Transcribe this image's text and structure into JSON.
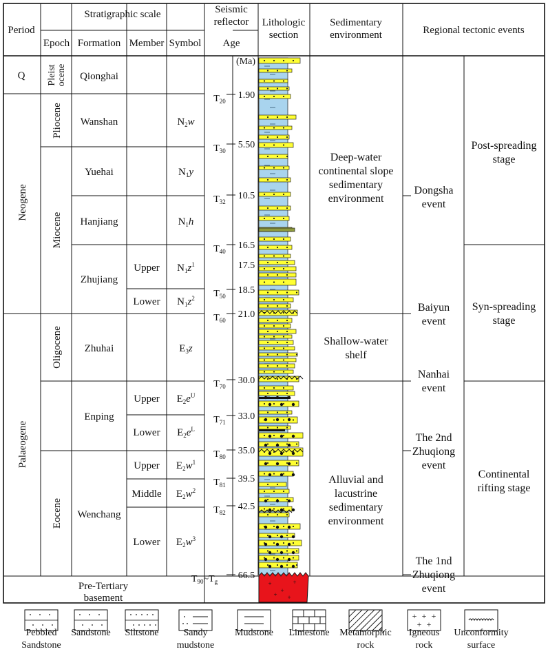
{
  "header": {
    "period": "Period",
    "strat_scale": "Stratigraphic scale",
    "epoch": "Epoch",
    "formation": "Formation",
    "member": "Member",
    "symbol": "Symbol",
    "seismic_l1": "Seismic",
    "seismic_l2": "reflector",
    "age": "Age",
    "litho_l1": "Lithologic",
    "litho_l2": "section",
    "sed_l1": "Sedimentary",
    "sed_l2": "environment",
    "regional": "Regional tectonic events"
  },
  "ma_unit": "(Ma)",
  "periods": {
    "q": "Q",
    "neogene": "Neogene",
    "palaeogene": "Palaeogene",
    "basement_l1": "Pre-Tertiary",
    "basement_l2": "basement"
  },
  "epochs": {
    "pleist_l1": "Pleist",
    "pleist_l2": "ocene",
    "pliocene": "Pliocene",
    "miocene": "Miocene",
    "oligocene": "Oligocene",
    "eocene": "Eocene"
  },
  "formations": {
    "qionghai": "Qionghai",
    "wanshan": "Wanshan",
    "yuehai": "Yuehai",
    "hanjiang": "Hanjiang",
    "zhujiang": "Zhujiang",
    "zhuhai": "Zhuhai",
    "enping": "Enping",
    "wenchang": "Wenchang"
  },
  "members": {
    "zj_upper": "Upper",
    "zj_lower": "Lower",
    "ep_upper": "Upper",
    "ep_lower": "Lower",
    "wc_upper": "Upper",
    "wc_middle": "Middle",
    "wc_lower": "Lower"
  },
  "symbols": {
    "n2w": {
      "base": "N",
      "sub": "2",
      "ital": "w",
      "sup": ""
    },
    "n1y": {
      "base": "N",
      "sub": "1",
      "ital": "y",
      "sup": ""
    },
    "n1h": {
      "base": "N",
      "sub": "1",
      "ital": "h",
      "sup": ""
    },
    "n1z1": {
      "base": "N",
      "sub": "1",
      "ital": "z",
      "sup": "1"
    },
    "n1z2": {
      "base": "N",
      "sub": "1",
      "ital": "z",
      "sup": "2"
    },
    "e3z": {
      "base": "E",
      "sub": "3",
      "ital": "z",
      "sup": ""
    },
    "e2eu": {
      "base": "E",
      "sub": "2",
      "ital": "e",
      "sup": "U"
    },
    "e2el": {
      "base": "E",
      "sub": "2",
      "ital": "e",
      "sup": "L"
    },
    "e2w1": {
      "base": "E",
      "sub": "2",
      "ital": "w",
      "sup": "1"
    },
    "e2w2": {
      "base": "E",
      "sub": "2",
      "ital": "w",
      "sup": "2"
    },
    "e2w3": {
      "base": "E",
      "sub": "2",
      "ital": "w",
      "sup": "3"
    }
  },
  "reflectors": [
    {
      "t": "T",
      "sub": "20",
      "age": "1.90"
    },
    {
      "t": "T",
      "sub": "30",
      "age": "5.50"
    },
    {
      "t": "T",
      "sub": "32",
      "age": "10.5"
    },
    {
      "t": "T",
      "sub": "40",
      "age": "16.5"
    },
    {
      "t": "",
      "sub": "",
      "age": "17.5"
    },
    {
      "t": "T",
      "sub": "50",
      "age": "18.5"
    },
    {
      "t": "T",
      "sub": "60",
      "age": "21.0"
    },
    {
      "t": "T",
      "sub": "70",
      "age": "30.0"
    },
    {
      "t": "T",
      "sub": "71",
      "age": "33.0"
    },
    {
      "t": "T",
      "sub": "80",
      "age": "35.0"
    },
    {
      "t": "T",
      "sub": "81",
      "age": "39.5"
    },
    {
      "t": "T",
      "sub": "82",
      "age": "42.5"
    },
    {
      "t": "T",
      "sub": "90",
      "age": "66.5",
      "t2": "T",
      "sub2": "g"
    }
  ],
  "environments": {
    "deep_l1": "Deep-water",
    "deep_l2": "continental slope",
    "deep_l3": "sedimentary",
    "deep_l4": "environment",
    "shelf_l1": "Shallow-water",
    "shelf_l2": "shelf",
    "alluvial_l1": "Alluvial and",
    "alluvial_l2": "lacustrine",
    "alluvial_l3": "sedimentary",
    "alluvial_l4": "environment"
  },
  "events": {
    "dongsha_l1": "Dongsha",
    "dongsha_l2": "event",
    "baiyun_l1": "Baiyun",
    "baiyun_l2": "event",
    "nanhai_l1": "Nanhai",
    "nanhai_l2": "event",
    "zq2_l1": "The 2nd",
    "zq2_l2": "Zhuqiong",
    "zq2_l3": "event",
    "zq1_l1": "The 1nd",
    "zq1_l2": "Zhuqiong",
    "zq1_l3": "event"
  },
  "stages": {
    "post_l1": "Post-spreading",
    "post_l2": "stage",
    "syn_l1": "Syn-spreading",
    "syn_l2": "stage",
    "rift_l1": "Continental",
    "rift_l2": "rifting stage"
  },
  "legend": [
    {
      "id": "pebbled-sandstone",
      "l1": "Pebbled",
      "l2": "Sandstone"
    },
    {
      "id": "sandstone",
      "l1": "Sandstone",
      "l2": ""
    },
    {
      "id": "siltstone",
      "l1": "Siltstone",
      "l2": ""
    },
    {
      "id": "sandy-mudstone",
      "l1": "Sandy",
      "l2": "mudstone"
    },
    {
      "id": "mudstone",
      "l1": "Mudstone",
      "l2": ""
    },
    {
      "id": "limestone",
      "l1": "Limestone",
      "l2": ""
    },
    {
      "id": "metamorphic-rock",
      "l1": "Metamorphic",
      "l2": "rock"
    },
    {
      "id": "igneous-rock",
      "l1": "Igneous",
      "l2": "rock"
    },
    {
      "id": "unconformity-surface",
      "l1": "Unconformity",
      "l2": "surface"
    }
  ],
  "colors": {
    "sandstone": "#FFFF33",
    "mudstone": "#A9D4EE",
    "igneous": "#E8141B",
    "olive_bed": "#8E9A3C"
  }
}
